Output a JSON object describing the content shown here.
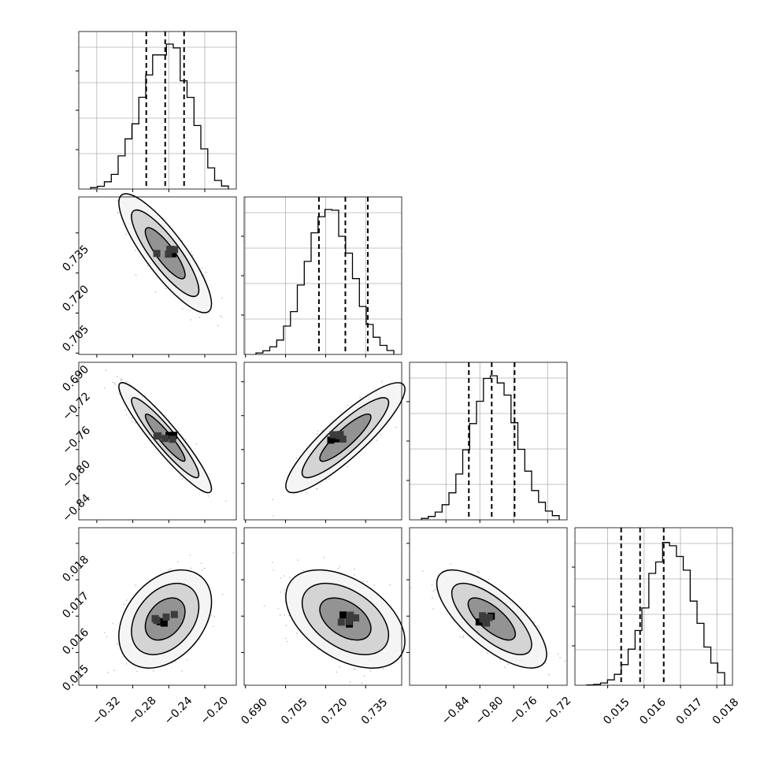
{
  "chart_data": {
    "type": "corner",
    "parameters": [
      {
        "range": [
          -0.34,
          -0.165
        ],
        "ticks": [
          -0.32,
          -0.28,
          -0.24,
          -0.2
        ],
        "tick_labels": [
          "−0.32",
          "−0.28",
          "−0.24",
          "−0.20"
        ],
        "quantiles": [
          -0.265,
          -0.244,
          -0.223
        ],
        "mean": -0.244,
        "sd": 0.021
      },
      {
        "range": [
          0.6895,
          0.7485
        ],
        "ticks": [
          0.69,
          0.705,
          0.72,
          0.735
        ],
        "tick_labels": [
          "0.690",
          "0.705",
          "0.720",
          "0.735"
        ],
        "quantiles": [
          0.7175,
          0.7274,
          0.7358
        ],
        "mean": 0.7274,
        "sd": 0.0091
      },
      {
        "range": [
          -0.883,
          -0.697
        ],
        "ticks": [
          -0.84,
          -0.8,
          -0.76,
          -0.72
        ],
        "tick_labels": [
          "−0.84",
          "−0.80",
          "−0.76",
          "−0.72"
        ],
        "quantiles": [
          -0.813,
          -0.786,
          -0.759
        ],
        "mean": -0.786,
        "sd": 0.0265
      },
      {
        "range": [
          0.0141,
          0.01843
        ],
        "ticks": [
          0.015,
          0.016,
          0.017,
          0.018
        ],
        "tick_labels": [
          "0.015",
          "0.016",
          "0.017",
          "0.018"
        ],
        "quantiles": [
          0.01537,
          0.01589,
          0.01654
        ],
        "mean": 0.01592,
        "sd": 0.00055
      }
    ],
    "correlations": [
      [
        1.0,
        -0.85,
        -0.93,
        0.35
      ],
      [
        -0.85,
        1.0,
        0.88,
        -0.45
      ],
      [
        -0.93,
        0.88,
        1.0,
        -0.72
      ],
      [
        0.35,
        -0.45,
        -0.72,
        1.0
      ]
    ],
    "histogram": {
      "bins": 20,
      "relative_heights_param1": [
        0.01,
        0.02,
        0.05,
        0.1,
        0.22,
        0.36,
        0.45,
        0.63,
        0.78,
        0.9,
        0.97,
        1.0,
        0.93,
        0.78,
        0.62,
        0.44,
        0.28,
        0.14,
        0.06,
        0.02
      ]
    },
    "grid": true,
    "legend": "none"
  }
}
